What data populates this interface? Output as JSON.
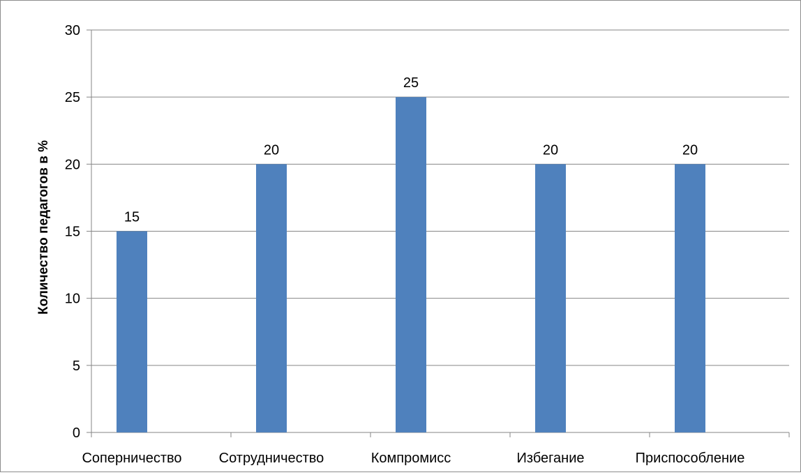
{
  "chart_data": {
    "type": "bar",
    "title": "",
    "xlabel": "",
    "ylabel": "Количество педагогов в %",
    "categories": [
      "Соперничество",
      "Сотрудничество",
      "Компромисс",
      "Избегание",
      "Приспособление"
    ],
    "values": [
      15,
      20,
      25,
      20,
      20
    ],
    "data_labels": [
      "15",
      "20",
      "25",
      "20",
      "20"
    ],
    "ylim": [
      0,
      30
    ],
    "yticks": [
      "0",
      "5",
      "10",
      "15",
      "20",
      "25",
      "30"
    ],
    "grid": true,
    "legend": "none",
    "bar_color": "#4F81BD",
    "grid_color": "#868686"
  }
}
